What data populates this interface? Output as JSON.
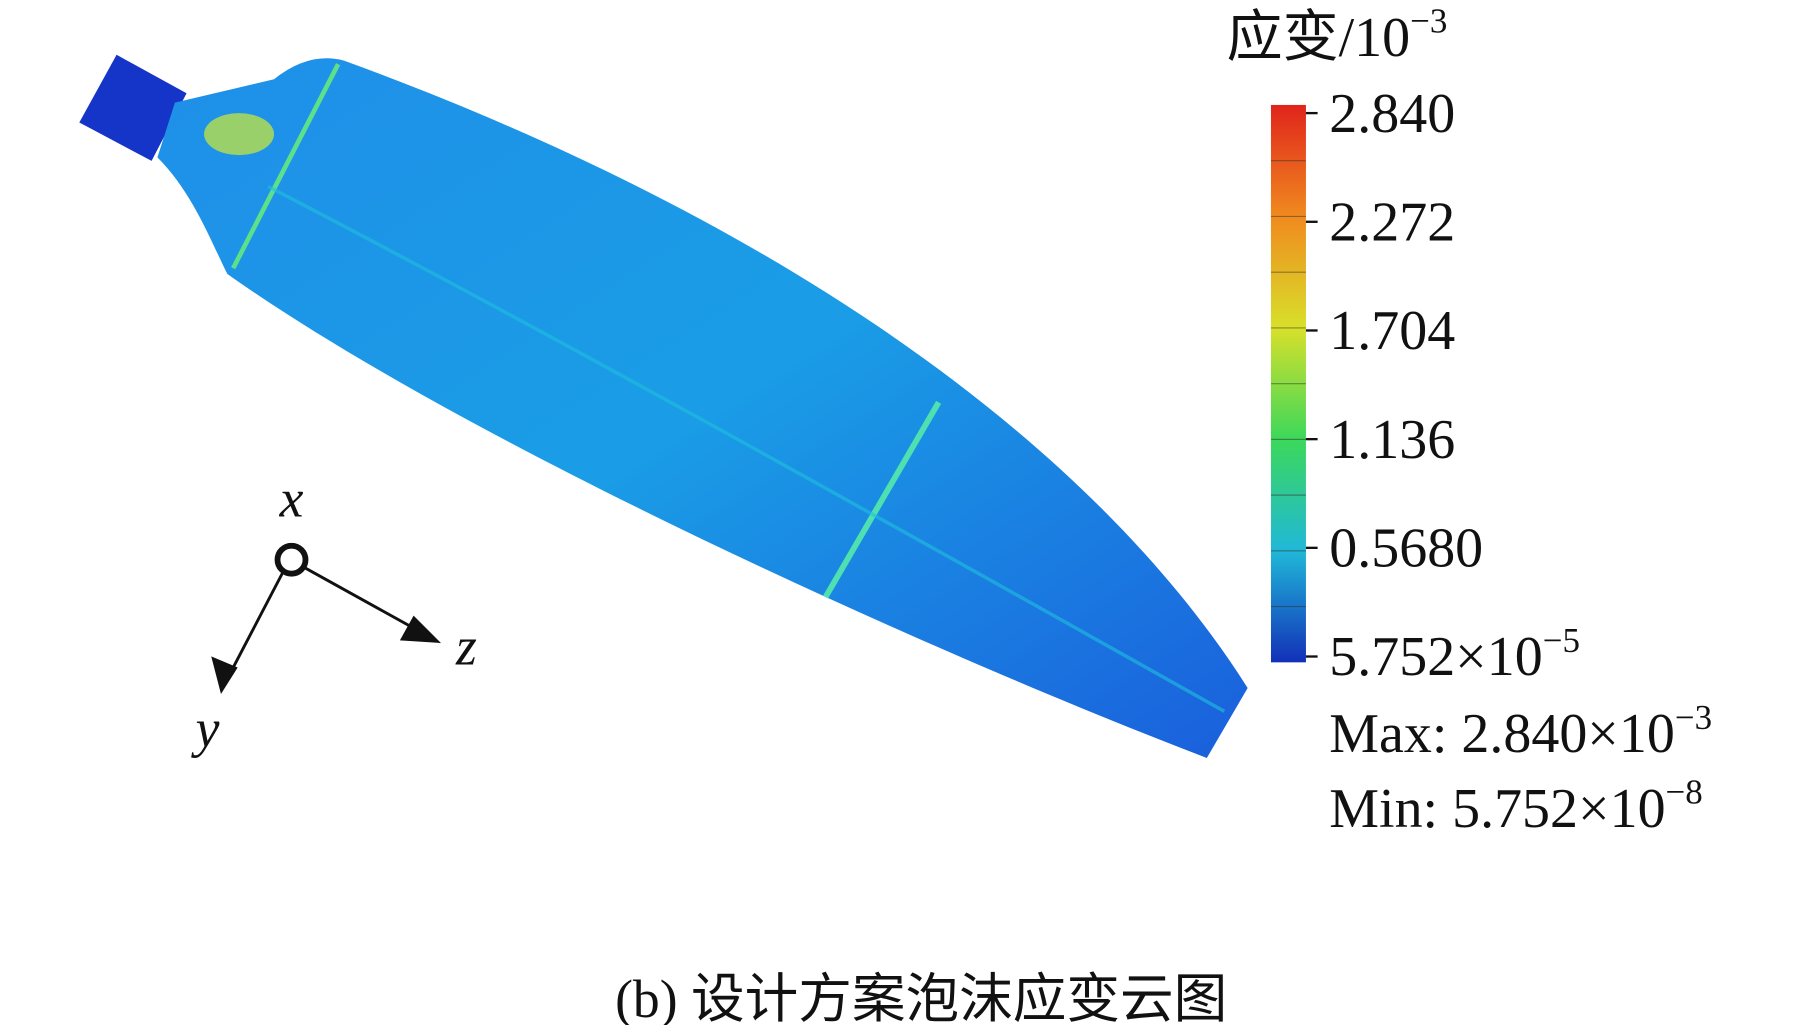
{
  "legend": {
    "title": "应变/10",
    "title_sup": "−3",
    "labels": [
      {
        "text": "2.840"
      },
      {
        "text": "2.272"
      },
      {
        "text": "1.704"
      },
      {
        "text": "1.136"
      },
      {
        "text": "0.5680"
      },
      {
        "text": "5.752×10",
        "sup": "−5"
      }
    ],
    "max": "Max: 2.840×10",
    "max_sup": "−3",
    "min": "Min: 5.752×10",
    "min_sup": "−8"
  },
  "axes": {
    "x": "x",
    "y": "y",
    "z": "z"
  },
  "caption": "(b) 设计方案泡沫应变云图"
}
